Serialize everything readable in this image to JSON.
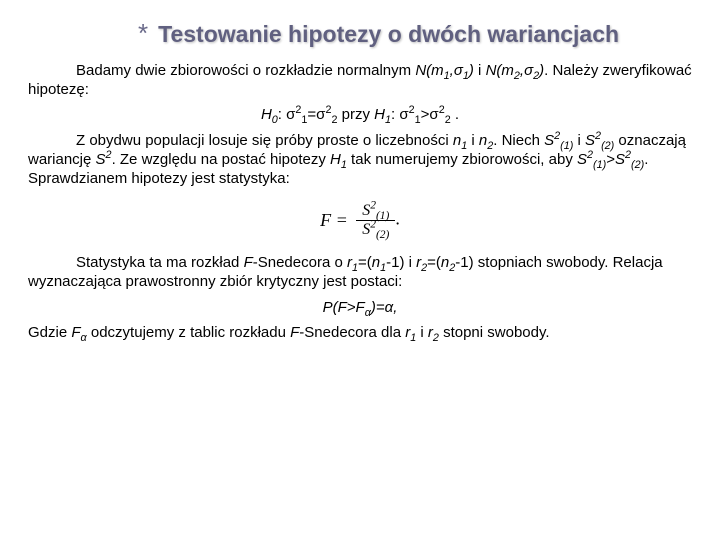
{
  "title": {
    "asterisk": "*",
    "text": "Testowanie hipotezy o dwóch wariancjach"
  },
  "p1a": "Badamy dwie zbiorowości o rozkładzie normalnym ",
  "p1b": " i ",
  "p1c": ". Należy zweryfikować hipotezę:",
  "n1": "N(m",
  "n1s": "1",
  "n1sig": ",σ",
  "n1sigs": "1",
  "n1close": ")",
  "n2": "N(m",
  "n2s": "2",
  "n2sig": ",σ",
  "n2sigs": "2",
  "n2close": ")",
  "hyp": {
    "h0": "H",
    "h0s": "0",
    "colon": ": σ",
    "p2": "2",
    "s1": "1",
    "eq": "=σ",
    "s2": "2",
    "przy": " przy ",
    "h1": "H",
    "h1s": "1",
    "gt": ">σ",
    "dot": " ."
  },
  "p2a": "Z obydwu populacji losuje się próby proste o liczebności ",
  "p2b": " i ",
  "p2c": ". Niech ",
  "p2d": " i ",
  "p2e": " oznaczają wariancję ",
  "p2f": ". Ze względu na postać hipotezy ",
  "p2g": " tak numerujemy zbiorowości, aby ",
  "p2h": ". Sprawdzianem hipotezy jest statystyka:",
  "nlab": "n",
  "s1": "1",
  "s2": "2",
  "S": "S",
  "sq": "2",
  "par1": "(1)",
  "par2": "(2)",
  "H1": "H",
  "H1s": "1",
  "gtsign": ">",
  "formula": {
    "F": "F",
    "eq": " = ",
    "numS": "S",
    "numP": "(1)",
    "denS": "S",
    "denP": "(2)",
    "sq": "2",
    "dot": "."
  },
  "p3a": "Statystyka ta ma rozkład ",
  "p3F": "F",
  "p3b": "-Snedecora o ",
  "p3r1": "r",
  "p3r1s": "1",
  "p3eq1": "=(",
  "p3n1": "n",
  "p3n1s": "1",
  "p3m1": "-1)",
  "p3and": " i ",
  "p3r2": "r",
  "p3r2s": "2",
  "p3n2": "n",
  "p3n2s": "2",
  "p3c": " stopniach swobody. Relacja wyznaczająca prawostronny zbiór krytyczny jest postaci:",
  "pf": {
    "P": "P(F>F",
    "a": "α",
    "close": ")=α,"
  },
  "p4a": "Gdzie ",
  "p4F": "F",
  "p4Fa": "α",
  "p4b": " odczytujemy z tablic rozkładu ",
  "p4c": "-Snedecora dla ",
  "p4d": " i ",
  "p4e": " stopni swobody.",
  "colors": {
    "title": "#606080",
    "asterisk": "#6a6a8a",
    "text": "#000000",
    "bg": "#ffffff"
  }
}
